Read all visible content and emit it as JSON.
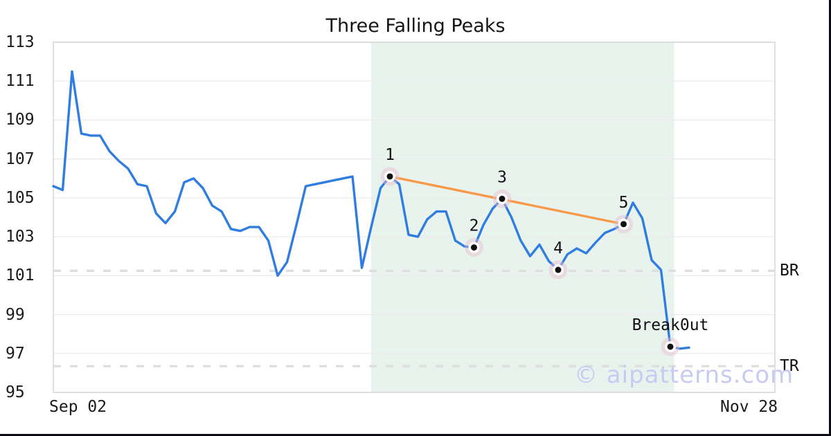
{
  "title": "Three Falling Peaks",
  "watermark": "© aipatterns.com",
  "chart_data": {
    "type": "line",
    "title": "Three Falling Peaks",
    "xlabel": "",
    "ylabel": "",
    "x_tick_labels": [
      "Sep 02",
      "Nov 28"
    ],
    "y_ticks": [
      113,
      111,
      109,
      107,
      105,
      103,
      101,
      99,
      97,
      95
    ],
    "ylim": [
      95,
      113
    ],
    "grid": true,
    "line_color": "#2f7de1",
    "series": [
      {
        "name": "price",
        "values": [
          105.6,
          105.4,
          111.5,
          108.3,
          108.2,
          108.2,
          107.4,
          106.9,
          106.5,
          105.7,
          105.6,
          104.2,
          103.7,
          104.3,
          105.8,
          106.0,
          105.5,
          104.6,
          104.3,
          103.4,
          103.3,
          103.5,
          103.5,
          102.8,
          101.0,
          101.7,
          103.6,
          105.6,
          105.7,
          105.8,
          105.9,
          106.0,
          106.1,
          101.4,
          103.5,
          105.5,
          106.1,
          105.7,
          103.1,
          103.0,
          103.9,
          104.3,
          104.3,
          102.8,
          102.5,
          102.45,
          103.6,
          104.45,
          104.95,
          104.0,
          102.8,
          102.0,
          102.6,
          101.75,
          101.3,
          102.1,
          102.4,
          102.15,
          102.7,
          103.2,
          103.4,
          103.65,
          104.75,
          103.95,
          101.8,
          101.3,
          97.35,
          97.25,
          97.3
        ]
      }
    ],
    "markers": [
      {
        "label": "1",
        "index": 36,
        "value": 106.1
      },
      {
        "label": "2",
        "index": 45,
        "value": 102.45
      },
      {
        "label": "3",
        "index": 48,
        "value": 104.95
      },
      {
        "label": "4",
        "index": 54,
        "value": 101.3
      },
      {
        "label": "5",
        "index": 61,
        "value": 103.65
      },
      {
        "label": "Break0ut",
        "index": 66,
        "value": 97.35
      }
    ],
    "trendline": {
      "from_marker": "1",
      "to_marker": "5",
      "from_index": 36,
      "to_index": 61,
      "from_value": 106.1,
      "to_value": 103.65,
      "color": "#f8994a"
    },
    "levels": [
      {
        "label": "BR",
        "value": 101.25
      },
      {
        "label": "TR",
        "value": 96.35
      }
    ],
    "pattern_region": {
      "start_index": 34,
      "end_index": 66.4,
      "color": "#e9f3ee"
    },
    "marker_style": {
      "halo_color": "#e7bfcb",
      "ring_color": "#ffffff",
      "dot_color": "#111111"
    }
  }
}
